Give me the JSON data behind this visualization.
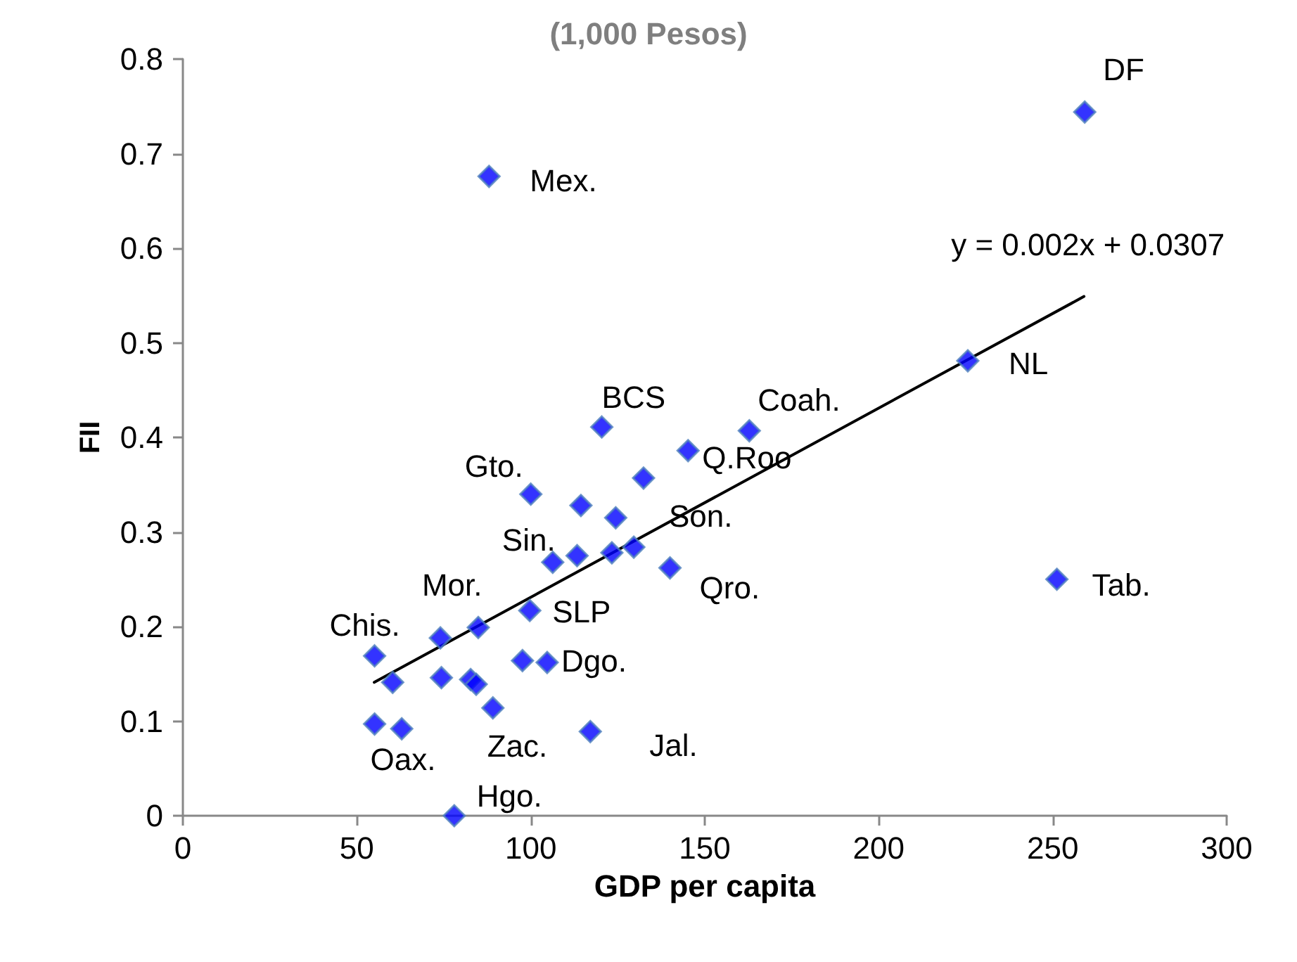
{
  "chart_data": {
    "type": "scatter",
    "title": "(1,000 Pesos)",
    "xlabel": "GDP per capita",
    "ylabel": "FII",
    "xlim": [
      0,
      300
    ],
    "xticks": [
      0,
      50,
      100,
      150,
      200,
      250,
      300
    ],
    "ylim": [
      0,
      0.8
    ],
    "yticks": [
      0,
      0.1,
      0.2,
      0.3,
      0.4,
      0.5,
      0.6,
      0.7,
      0.8
    ],
    "grid": false,
    "marker": "diamond",
    "x": [
      259.2,
      88,
      225.6,
      162.8,
      120.4,
      145.2,
      132.4,
      100,
      114.4,
      124.4,
      106.3,
      113.3,
      123.3,
      129.6,
      140,
      99.7,
      84.9,
      74,
      55.1,
      60.3,
      74.3,
      82.7,
      84.3,
      97.6,
      104.7,
      89.1,
      55.1,
      62.9,
      117.1,
      78,
      251.2
    ],
    "series": [
      {
        "color": "#0000ff",
        "values": [
          0.744,
          0.676,
          0.481,
          0.407,
          0.411,
          0.386,
          0.357,
          0.34,
          0.328,
          0.315,
          0.268,
          0.275,
          0.278,
          0.284,
          0.262,
          0.217,
          0.199,
          0.188,
          0.169,
          0.141,
          0.146,
          0.144,
          0.139,
          0.164,
          0.162,
          0.114,
          0.097,
          0.092,
          0.089,
          0,
          0.25
        ]
      },
      {
        "type": "line",
        "color": "#000000",
        "marker": "none",
        "line_style": "solid",
        "x": [
          55,
          259
        ],
        "values": [
          0.141,
          0.549
        ]
      }
    ],
    "annotations": [
      {
        "text": "DF",
        "x": 259.2,
        "y": 0.744
      },
      {
        "text": "Mex.",
        "x": 88,
        "y": 0.676
      },
      {
        "text": "NL",
        "x": 225.6,
        "y": 0.481
      },
      {
        "text": "Coah.",
        "x": 162.8,
        "y": 0.407
      },
      {
        "text": "BCS",
        "x": 120.4,
        "y": 0.411
      },
      {
        "text": "Q.Roo",
        "x": 145.2,
        "y": 0.386
      },
      {
        "text": "Gto.",
        "x": 100,
        "y": 0.34
      },
      {
        "text": "Son.",
        "x": 132.4,
        "y": 0.357
      },
      {
        "text": "Sin.",
        "x": 106.3,
        "y": 0.268
      },
      {
        "text": "Mor.",
        "x": 84.9,
        "y": 0.199
      },
      {
        "text": "SLP",
        "x": 99.7,
        "y": 0.217
      },
      {
        "text": "Chis.",
        "x": 55.1,
        "y": 0.169
      },
      {
        "text": "Dgo.",
        "x": 104.7,
        "y": 0.162
      },
      {
        "text": "Qro.",
        "x": 140,
        "y": 0.262
      },
      {
        "text": "Tab.",
        "x": 251.2,
        "y": 0.25
      },
      {
        "text": "Zac.",
        "x": 89.1,
        "y": 0.114
      },
      {
        "text": "Jal.",
        "x": 117.1,
        "y": 0.089
      },
      {
        "text": "Oax.",
        "x": 55.1,
        "y": 0.097
      },
      {
        "text": "Hgo.",
        "x": 78,
        "y": 0
      },
      "y = 0.002x + 0.0307"
    ]
  }
}
